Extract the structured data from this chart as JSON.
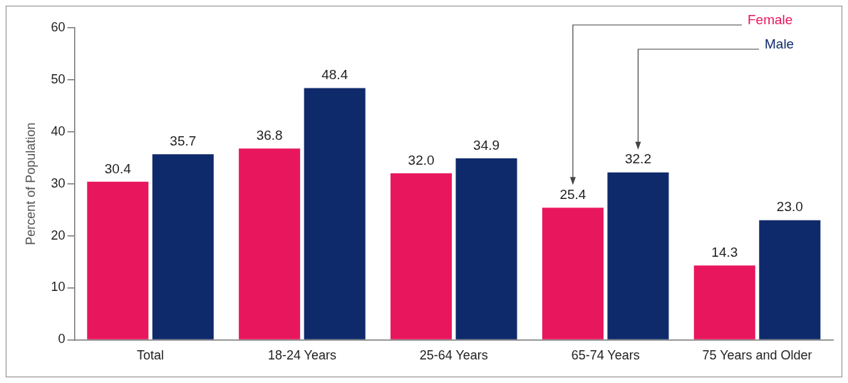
{
  "chart_data": {
    "type": "bar",
    "ylabel": "Percent of Population",
    "categories": [
      "Total",
      "18-24 Years",
      "25-64 Years",
      "65-74 Years",
      "75 Years and Older"
    ],
    "series": [
      {
        "name": "Female",
        "color": "#e8175d",
        "values": [
          30.4,
          36.8,
          32.0,
          25.4,
          14.3
        ],
        "value_labels": [
          "30.4",
          "36.8",
          "32.0",
          "25.4",
          "14.3"
        ]
      },
      {
        "name": "Male",
        "color": "#0f2a6b",
        "values": [
          35.7,
          48.4,
          34.9,
          32.2,
          23.0
        ],
        "value_labels": [
          "35.7",
          "48.4",
          "34.9",
          "32.2",
          "23.0"
        ]
      }
    ],
    "ylim": [
      0,
      60
    ],
    "yticks": [
      0,
      10,
      20,
      30,
      40,
      50,
      60
    ],
    "grid": false,
    "legend": false
  }
}
